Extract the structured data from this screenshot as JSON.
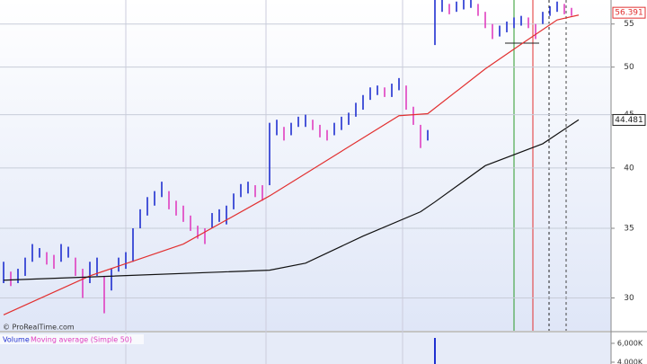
{
  "chart_data": {
    "type": "ohlc",
    "log_scale": true,
    "grid": true,
    "up_color": "#1f2fd0",
    "down_color": "#e03fc0",
    "ylim": [
      27.9,
      58.0
    ],
    "yticks": [
      30,
      35,
      40,
      45,
      50,
      55
    ],
    "high": [
      32.5,
      31.8,
      32.0,
      32.8,
      33.8,
      33.5,
      33.2,
      33.0,
      33.8,
      33.6,
      32.8,
      32.0,
      32.5,
      32.8,
      31.5,
      32.0,
      32.8,
      33.2,
      35.0,
      36.5,
      37.5,
      38.0,
      38.8,
      38.0,
      37.2,
      36.8,
      36.0,
      35.2,
      35.0,
      36.2,
      36.5,
      36.8,
      37.8,
      38.6,
      38.8,
      38.5,
      38.5,
      44.2,
      44.5,
      43.8,
      44.2,
      44.8,
      45.0,
      44.5,
      44.0,
      43.5,
      44.2,
      44.8,
      45.2,
      46.2,
      47.0,
      47.8,
      48.0,
      47.8,
      48.2,
      48.8,
      48.0,
      45.8,
      44.0,
      43.5,
      58.0,
      58.0,
      57.5,
      57.8,
      58.0,
      58.0,
      57.5,
      56.5,
      55.0,
      54.8,
      55.3,
      55.8,
      56.0,
      55.8,
      55.0,
      56.5,
      57.2,
      57.8,
      57.5,
      57.0
    ],
    "low": [
      31.0,
      30.8,
      31.0,
      31.5,
      32.5,
      32.8,
      32.3,
      32.0,
      32.5,
      32.8,
      31.5,
      30.0,
      31.0,
      31.5,
      29.0,
      30.5,
      31.8,
      32.0,
      32.5,
      35.0,
      36.0,
      36.8,
      37.5,
      36.5,
      36.0,
      35.5,
      34.8,
      34.2,
      33.8,
      35.0,
      35.5,
      35.3,
      36.5,
      37.5,
      37.8,
      37.5,
      37.2,
      38.5,
      43.0,
      42.5,
      43.0,
      43.8,
      43.8,
      43.5,
      42.8,
      42.5,
      43.0,
      43.5,
      44.0,
      44.8,
      45.5,
      46.5,
      47.0,
      46.8,
      46.8,
      47.5,
      45.5,
      44.0,
      41.8,
      42.5,
      52.5,
      56.5,
      56.2,
      56.5,
      56.8,
      57.0,
      56.0,
      54.5,
      53.2,
      53.5,
      54.0,
      54.5,
      54.8,
      54.5,
      53.2,
      55.0,
      56.0,
      56.5,
      56.2,
      56.0
    ],
    "moving_averages": [
      {
        "color": "#e23030",
        "x": [
          0,
          12,
          25,
          37,
          47,
          55,
          59,
          67,
          72,
          77,
          80
        ],
        "values": [
          28.9,
          31.5,
          33.8,
          37.6,
          41.5,
          44.9,
          45.1,
          49.8,
          52.6,
          55.5,
          56.1
        ]
      },
      {
        "color": "#111111",
        "x": [
          0,
          37,
          42,
          50,
          58,
          60,
          67,
          75,
          80
        ],
        "values": [
          31.2,
          31.9,
          32.4,
          34.4,
          36.3,
          37.1,
          40.2,
          42.2,
          44.5
        ]
      }
    ],
    "price_labels": [
      {
        "value": 56.391,
        "color": "#e23030"
      },
      {
        "value": 44.481,
        "color": "#222222"
      }
    ],
    "copyright": "© ProRealTime.com",
    "volume": {
      "title": "Volume",
      "ma_label": "Moving average (Simple 50)",
      "color": "#1f2fd0",
      "x": [
        60
      ],
      "values": [
        6570
      ],
      "ylim": [
        3810,
        7140
      ],
      "yticks": [
        {
          "value": 6000,
          "label": "6,000K"
        },
        {
          "value": 4000,
          "label": "4,000K"
        }
      ]
    }
  }
}
